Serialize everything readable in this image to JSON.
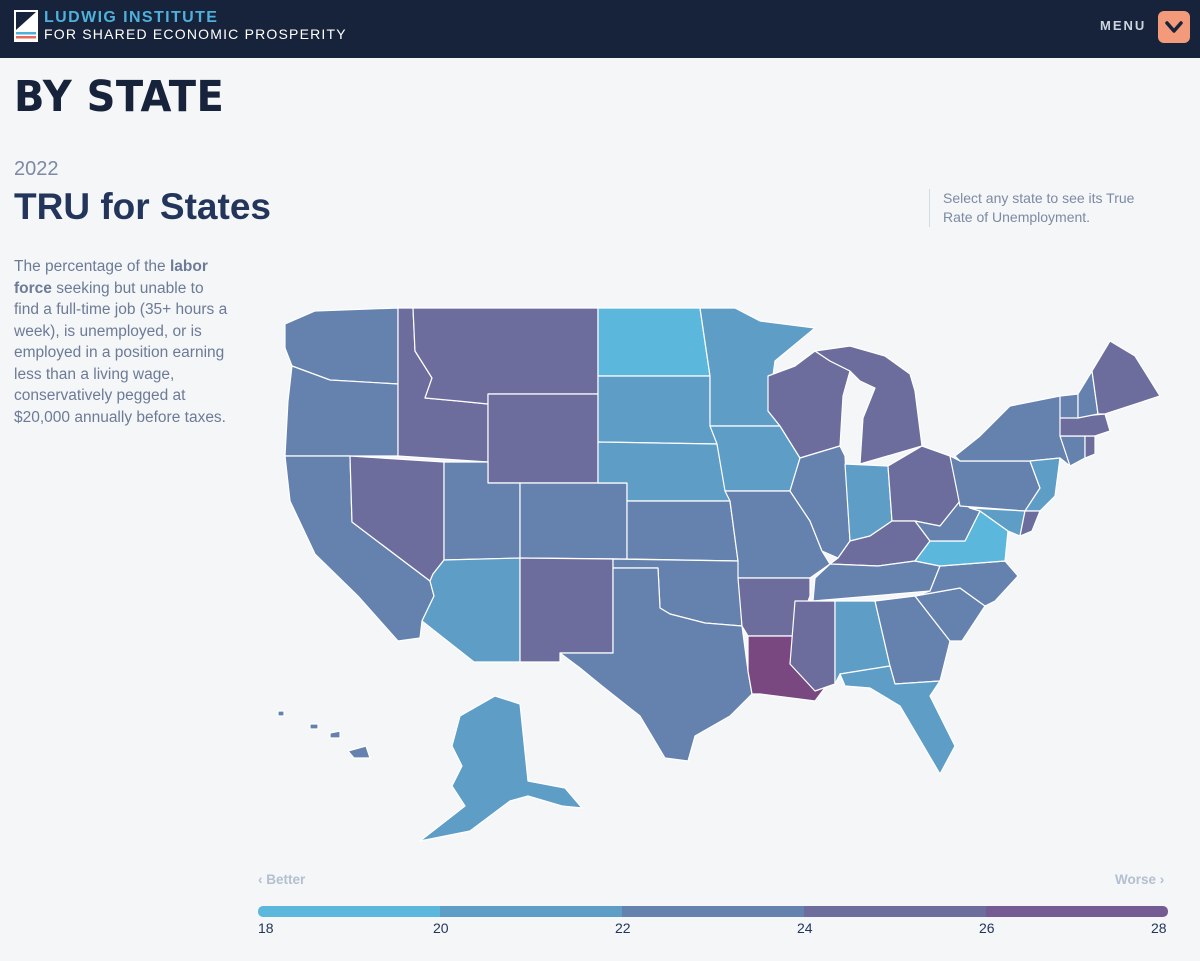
{
  "header": {
    "brand_line1": "LUDWIG INSTITUTE",
    "brand_line2": "FOR SHARED ECONOMIC PROSPERITY",
    "menu_label": "MENU",
    "logo_icon": "flag-logo-icon",
    "menu_icon": "chevron-down-icon"
  },
  "page": {
    "title": "BY STATE",
    "year": "2022",
    "heading": "TRU for States",
    "description_pre": "The percentage of the ",
    "description_bold": "labor force",
    "description_post": " seeking but unable to find a full-time job (35+ hours a week), is unemployed, or is employed in a position earning less than a living wage, conservatively pegged at $20,000 annually before taxes.",
    "hint": "Select any state to see its True Rate of Unemployment."
  },
  "legend": {
    "better_label": "Better",
    "worse_label": "Worse",
    "ticks": [
      "18",
      "20",
      "22",
      "24",
      "26",
      "28"
    ],
    "colors": [
      "#5bb7dc",
      "#5e9dc6",
      "#6581ae",
      "#6c6d9c",
      "#745c92",
      "#7a4880"
    ]
  },
  "chart_data": {
    "type": "choropleth",
    "title": "TRU for States",
    "legend_range": [
      18,
      28
    ],
    "bins": [
      {
        "range": [
          18,
          20
        ],
        "color": "#5bb7dc"
      },
      {
        "range": [
          20,
          22
        ],
        "color": "#5e9dc6"
      },
      {
        "range": [
          22,
          24
        ],
        "color": "#6581ae"
      },
      {
        "range": [
          24,
          26
        ],
        "color": "#6c6d9c"
      },
      {
        "range": [
          26,
          28
        ],
        "color": "#7a4880"
      }
    ],
    "states": [
      {
        "name": "WA",
        "bin": 2
      },
      {
        "name": "OR",
        "bin": 2
      },
      {
        "name": "CA",
        "bin": 2
      },
      {
        "name": "ID",
        "bin": 3
      },
      {
        "name": "NV",
        "bin": 3
      },
      {
        "name": "MT",
        "bin": 3
      },
      {
        "name": "WY",
        "bin": 3
      },
      {
        "name": "UT",
        "bin": 2
      },
      {
        "name": "AZ",
        "bin": 1
      },
      {
        "name": "CO",
        "bin": 2
      },
      {
        "name": "NM",
        "bin": 3
      },
      {
        "name": "ND",
        "bin": 0
      },
      {
        "name": "SD",
        "bin": 1
      },
      {
        "name": "NE",
        "bin": 1
      },
      {
        "name": "KS",
        "bin": 2
      },
      {
        "name": "OK",
        "bin": 2
      },
      {
        "name": "TX",
        "bin": 2
      },
      {
        "name": "MN",
        "bin": 1
      },
      {
        "name": "IA",
        "bin": 1
      },
      {
        "name": "MO",
        "bin": 2
      },
      {
        "name": "AR",
        "bin": 3
      },
      {
        "name": "LA",
        "bin": 4
      },
      {
        "name": "WI",
        "bin": 3
      },
      {
        "name": "IL",
        "bin": 2
      },
      {
        "name": "MI",
        "bin": 3
      },
      {
        "name": "IN",
        "bin": 1
      },
      {
        "name": "OH",
        "bin": 3
      },
      {
        "name": "KY",
        "bin": 3
      },
      {
        "name": "TN",
        "bin": 2
      },
      {
        "name": "MS",
        "bin": 3
      },
      {
        "name": "AL",
        "bin": 1
      },
      {
        "name": "GA",
        "bin": 2
      },
      {
        "name": "FL",
        "bin": 1
      },
      {
        "name": "SC",
        "bin": 2
      },
      {
        "name": "NC",
        "bin": 2
      },
      {
        "name": "VA",
        "bin": 0
      },
      {
        "name": "WV",
        "bin": 2
      },
      {
        "name": "PA",
        "bin": 2
      },
      {
        "name": "NY",
        "bin": 2
      },
      {
        "name": "NJ",
        "bin": 1
      },
      {
        "name": "MD",
        "bin": 1
      },
      {
        "name": "DE",
        "bin": 3
      },
      {
        "name": "CT",
        "bin": 2
      },
      {
        "name": "RI",
        "bin": 3
      },
      {
        "name": "MA",
        "bin": 3
      },
      {
        "name": "VT",
        "bin": 2
      },
      {
        "name": "NH",
        "bin": 2
      },
      {
        "name": "ME",
        "bin": 3
      },
      {
        "name": "AK",
        "bin": 1
      },
      {
        "name": "HI",
        "bin": 2
      }
    ]
  }
}
